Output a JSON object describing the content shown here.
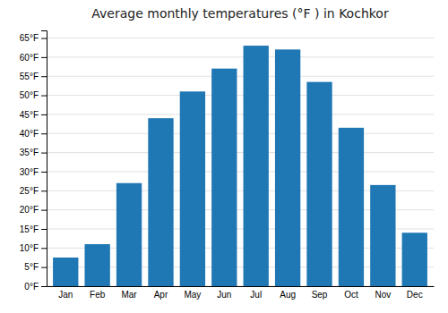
{
  "chart_data": {
    "type": "bar",
    "title": "Average monthly temperatures (°F ) in Kochkor",
    "categories": [
      "Jan",
      "Feb",
      "Mar",
      "Apr",
      "May",
      "Jun",
      "Jul",
      "Aug",
      "Sep",
      "Oct",
      "Nov",
      "Dec"
    ],
    "values": [
      7.5,
      11.0,
      27.0,
      44.0,
      51.0,
      57.0,
      63.0,
      62.0,
      53.5,
      41.5,
      26.5,
      14.0
    ],
    "ylim": [
      0,
      67
    ],
    "yticks": [
      {
        "value": 0,
        "label": "0°F"
      },
      {
        "value": 5,
        "label": "5°F"
      },
      {
        "value": 10,
        "label": "10°F"
      },
      {
        "value": 15,
        "label": "15°F"
      },
      {
        "value": 20,
        "label": "20°F"
      },
      {
        "value": 25,
        "label": "25°F"
      },
      {
        "value": 30,
        "label": "30°F"
      },
      {
        "value": 35,
        "label": "35°F"
      },
      {
        "value": 40,
        "label": "40°F"
      },
      {
        "value": 45,
        "label": "45°F"
      },
      {
        "value": 50,
        "label": "50°F"
      },
      {
        "value": 55,
        "label": "55°F"
      },
      {
        "value": 60,
        "label": "60°F"
      },
      {
        "value": 65,
        "label": "65°F"
      }
    ],
    "grid": true
  }
}
